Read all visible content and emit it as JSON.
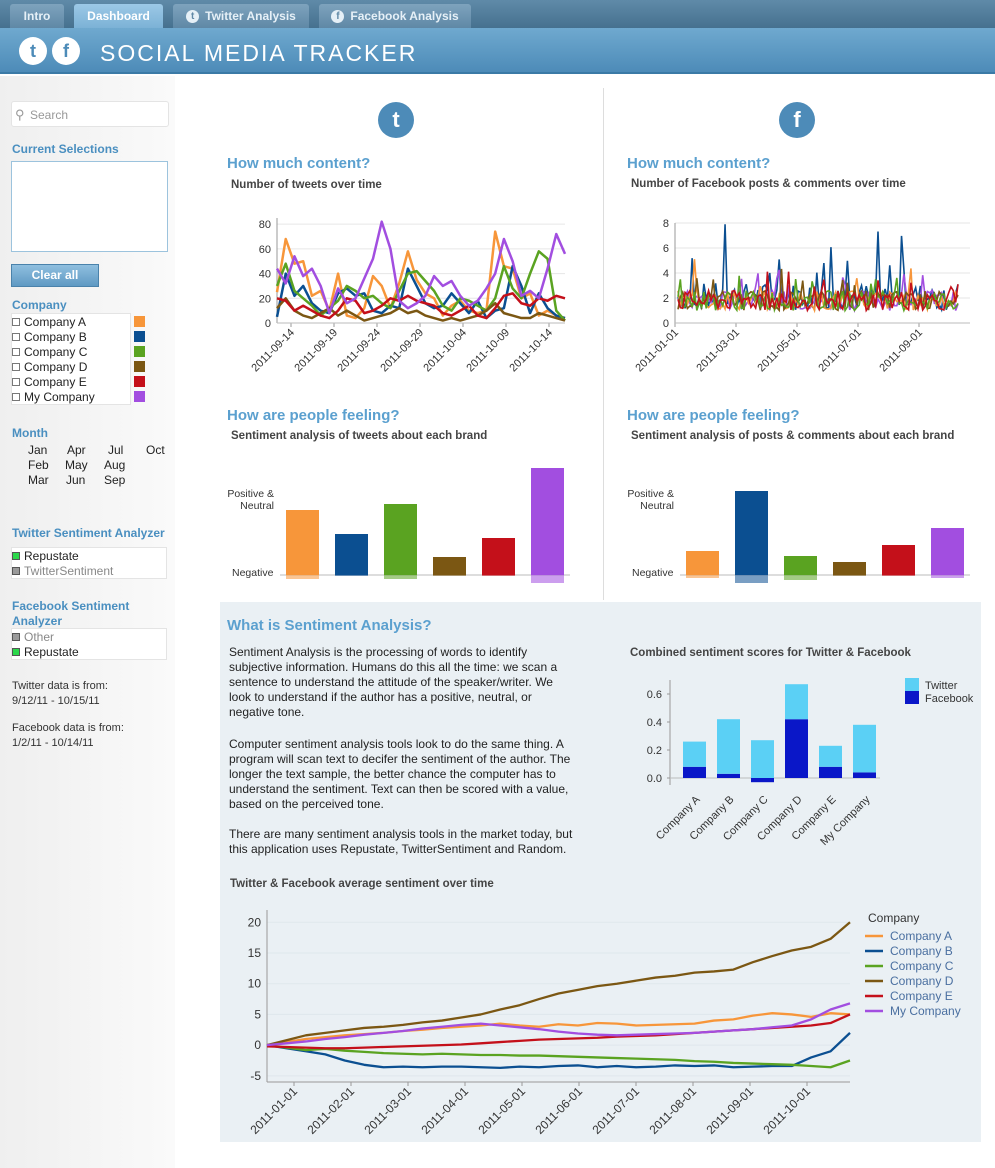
{
  "tabs": [
    {
      "label": "Intro",
      "icon": ""
    },
    {
      "label": "Dashboard",
      "icon": ""
    },
    {
      "label": "Twitter Analysis",
      "icon": "twitter-icon"
    },
    {
      "label": "Facebook Analysis",
      "icon": "facebook-icon"
    }
  ],
  "app_title": "SOCIAL MEDIA TRACKER",
  "colors": {
    "company_a": "#f7963a",
    "company_b": "#0b4f91",
    "company_c": "#5aa321",
    "company_d": "#7b5713",
    "company_e": "#c4101a",
    "my_company": "#a24ee0",
    "accent": "#5ba0cf",
    "twitter_bar": "#5bd0f5",
    "facebook_bar": "#0a17c8"
  },
  "sidebar": {
    "search_placeholder": "Search",
    "current_selections": "Current Selections",
    "clear_all": "Clear all",
    "company_head": "Company",
    "companies": [
      "Company A",
      "Company B",
      "Company C",
      "Company D",
      "Company E",
      "My Company"
    ],
    "month_head": "Month",
    "months": [
      "Jan",
      "Apr",
      "Jul",
      "Oct",
      "Feb",
      "May",
      "Aug",
      "Mar",
      "Jun",
      "Sep"
    ],
    "twitter_analyzer_head": "Twitter Sentiment Analyzer",
    "twitter_analyzers": [
      "Repustate",
      "TwitterSentiment"
    ],
    "facebook_analyzer_head": "Facebook Sentiment Analyzer",
    "facebook_analyzers": [
      "Other",
      "Repustate"
    ],
    "twitter_from_label": "Twitter data is from:",
    "twitter_from": "9/12/11 - 10/15/11",
    "facebook_from_label": "Facebook data is from:",
    "facebook_from": "1/2/11 - 10/14/11"
  },
  "twitter": {
    "content_title": "How much content?",
    "content_sub": "Number of tweets over time",
    "feel_title": "How are people feeling?",
    "feel_sub": "Sentiment analysis of tweets about each brand",
    "pos_label": "Positive &",
    "pos_label2": "Neutral",
    "neg_label": "Negative"
  },
  "facebook": {
    "content_title": "How much content?",
    "content_sub": "Number of Facebook posts & comments over time",
    "feel_title": "How are people feeling?",
    "feel_sub": "Sentiment analysis of posts & comments about each brand",
    "pos_label": "Positive &",
    "pos_label2": "Neutral",
    "neg_label": "Negative"
  },
  "what": {
    "title": "What is Sentiment Analysis?",
    "p1": [
      "Sentiment Analysis is the processing of words to identify",
      "subjective information.  Humans do this all the time: we scan a",
      "sentence to understand the attitude of the speaker/writer.  We",
      "look to understand if the author has a positive, neutral, or",
      "negative tone."
    ],
    "p2": [
      "Computer sentiment analysis tools look to do the same thing.  A",
      "program will scan text to decifer the sentiment of the author.  The",
      "longer the text sample, the better chance the computer has to",
      "understand the sentiment.  Text can then be scored with a value,",
      "based on the perceived tone."
    ],
    "p3": [
      "There are many sentiment analysis tools in the market today, but",
      "this application uses Repustate, TwitterSentiment and Random."
    ]
  },
  "chart_data": [
    {
      "id": "tweets",
      "type": "line",
      "title": "Number of tweets over time",
      "ylim": [
        0,
        85
      ],
      "yticks": [
        0,
        20,
        40,
        60,
        80
      ],
      "xticks": [
        "2011-09-14",
        "2011-09-19",
        "2011-09-24",
        "2011-09-29",
        "2011-10-04",
        "2011-10-09",
        "2011-10-14"
      ],
      "x_start": "2011-09-12",
      "x_end": "2011-10-15",
      "series": [
        {
          "name": "Company A",
          "values": [
            25,
            68,
            48,
            50,
            22,
            26,
            10,
            40,
            6,
            4,
            12,
            38,
            30,
            12,
            32,
            58,
            35,
            24,
            20,
            6,
            14,
            18,
            10,
            8,
            10,
            74,
            46,
            44,
            20,
            24,
            6,
            10,
            6,
            4
          ]
        },
        {
          "name": "Company B",
          "values": [
            5,
            40,
            22,
            30,
            16,
            10,
            8,
            24,
            28,
            22,
            24,
            10,
            8,
            14,
            12,
            44,
            30,
            16,
            12,
            14,
            24,
            16,
            8,
            18,
            4,
            10,
            12,
            46,
            30,
            8,
            24,
            12,
            6,
            4
          ]
        },
        {
          "name": "Company C",
          "values": [
            30,
            48,
            26,
            20,
            14,
            6,
            12,
            18,
            30,
            26,
            20,
            22,
            16,
            12,
            26,
            40,
            42,
            34,
            26,
            14,
            10,
            20,
            18,
            14,
            10,
            20,
            46,
            28,
            20,
            40,
            58,
            52,
            10,
            2
          ]
        },
        {
          "name": "Company D",
          "values": [
            12,
            20,
            10,
            6,
            4,
            8,
            12,
            6,
            10,
            6,
            2,
            4,
            6,
            8,
            12,
            8,
            10,
            6,
            4,
            2,
            4,
            2,
            4,
            6,
            10,
            16,
            8,
            6,
            4,
            4,
            8,
            6,
            4,
            2
          ]
        },
        {
          "name": "Company E",
          "values": [
            20,
            18,
            10,
            14,
            10,
            6,
            4,
            10,
            20,
            18,
            8,
            10,
            14,
            20,
            18,
            22,
            18,
            16,
            14,
            8,
            6,
            10,
            14,
            6,
            4,
            12,
            22,
            24,
            16,
            14,
            20,
            18,
            22,
            20
          ]
        },
        {
          "name": "My Company",
          "values": [
            44,
            32,
            54,
            38,
            44,
            30,
            8,
            28,
            16,
            20,
            36,
            52,
            82,
            60,
            18,
            12,
            16,
            22,
            38,
            30,
            34,
            22,
            14,
            18,
            28,
            40,
            68,
            50,
            22,
            26,
            20,
            44,
            72,
            56
          ]
        }
      ]
    },
    {
      "id": "fb_posts",
      "type": "line",
      "title": "Number of Facebook posts & comments over time",
      "ylim": [
        0,
        8
      ],
      "yticks": [
        0,
        2,
        4,
        6,
        8
      ],
      "xticks": [
        "2011-01-01",
        "2011-03-01",
        "2011-05-01",
        "2011-07-01",
        "2011-09-01"
      ],
      "x_start": "2011-01-02",
      "x_end": "2011-10-14"
    },
    {
      "id": "tw_sent",
      "type": "bar",
      "categories": [
        "Company A",
        "Company B",
        "Company C",
        "Company D",
        "Company E",
        "My Company"
      ],
      "positive": [
        65,
        41,
        71,
        18,
        37,
        107
      ],
      "negative": [
        4,
        1,
        4,
        1,
        1,
        8
      ]
    },
    {
      "id": "fb_sent",
      "type": "bar",
      "categories": [
        "Company A",
        "Company B",
        "Company C",
        "Company D",
        "Company E",
        "My Company"
      ],
      "positive": [
        24,
        84,
        19,
        13,
        30,
        47
      ],
      "negative": [
        3,
        8,
        5,
        1,
        1,
        3
      ]
    },
    {
      "id": "combined",
      "type": "bar",
      "title": "Combined sentiment scores for Twitter & Facebook",
      "ylim": [
        -0.05,
        0.7
      ],
      "yticks": [
        0.0,
        0.2,
        0.4,
        0.6
      ],
      "categories": [
        "Company A",
        "Company B",
        "Company C",
        "Company D",
        "Company E",
        "My Company"
      ],
      "series": [
        {
          "name": "Twitter",
          "values": [
            0.18,
            0.39,
            0.27,
            0.25,
            0.15,
            0.34
          ]
        },
        {
          "name": "Facebook",
          "values": [
            0.08,
            0.03,
            -0.03,
            0.42,
            0.08,
            0.04
          ]
        }
      ]
    },
    {
      "id": "avg_sent",
      "type": "line",
      "title": "Twitter & Facebook average sentiment over time",
      "legend_title": "Company",
      "ylim": [
        -6,
        22
      ],
      "yticks": [
        -5,
        0,
        5,
        10,
        15,
        20
      ],
      "xticks": [
        "2011-01-01",
        "2011-02-01",
        "2011-03-01",
        "2011-04-01",
        "2011-05-01",
        "2011-06-01",
        "2011-07-01",
        "2011-08-01",
        "2011-09-01",
        "2011-10-01"
      ],
      "series": [
        {
          "name": "Company A",
          "values": [
            0,
            0.5,
            1,
            1.3,
            1.6,
            1.8,
            2,
            2.3,
            2.5,
            2.8,
            3,
            3.2,
            3.5,
            3.2,
            3,
            3.4,
            3.2,
            3.6,
            3.5,
            3.2,
            3.3,
            3.4,
            3.5,
            4,
            4.2,
            4.8,
            5.2,
            5,
            4.6,
            5.2,
            5
          ]
        },
        {
          "name": "Company B",
          "values": [
            0,
            -0.5,
            -1,
            -1.5,
            -2.5,
            -3.2,
            -3.6,
            -3.5,
            -3.6,
            -3.5,
            -3.5,
            -3.6,
            -3.7,
            -3.5,
            -3.6,
            -3.4,
            -3.3,
            -3.6,
            -3.4,
            -3.6,
            -3.5,
            -3.3,
            -3.4,
            -3.3,
            -3.6,
            -3.5,
            -3.4,
            -3.4,
            -2,
            -1,
            2
          ]
        },
        {
          "name": "Company C",
          "values": [
            0,
            -0.4,
            -0.8,
            -0.6,
            -0.9,
            -1.1,
            -1.3,
            -1.4,
            -1.5,
            -1.4,
            -1.5,
            -1.6,
            -1.6,
            -1.7,
            -1.7,
            -1.8,
            -1.9,
            -2,
            -2.1,
            -2.2,
            -2.3,
            -2.4,
            -2.6,
            -2.7,
            -2.9,
            -3,
            -3.1,
            -3.2,
            -3.4,
            -3.6,
            -2.5
          ]
        },
        {
          "name": "Company D",
          "values": [
            0,
            0.8,
            1.6,
            2,
            2.4,
            2.8,
            3,
            3.3,
            3.7,
            4,
            4.5,
            5,
            5.8,
            6.5,
            7.5,
            8.4,
            9,
            9.6,
            10,
            10.5,
            11,
            11.3,
            11.8,
            12,
            12.3,
            13.5,
            14.5,
            15.4,
            16,
            17.3,
            20
          ]
        },
        {
          "name": "Company E",
          "values": [
            -0.2,
            -0.3,
            -0.4,
            -0.5,
            -0.5,
            -0.4,
            -0.3,
            -0.2,
            -0.1,
            0,
            0.1,
            0.3,
            0.5,
            0.7,
            0.9,
            1,
            1.1,
            1.2,
            1.4,
            1.5,
            1.6,
            1.8,
            2,
            2.2,
            2.4,
            2.6,
            2.8,
            3,
            3.2,
            3.6,
            5
          ]
        },
        {
          "name": "My Company",
          "values": [
            0,
            0.3,
            0.6,
            1,
            1.3,
            1.7,
            2,
            2.3,
            2.7,
            3,
            3.3,
            3.5,
            3.2,
            2.9,
            2.6,
            2.2,
            1.9,
            1.7,
            1.6,
            1.7,
            1.8,
            1.9,
            2,
            2.2,
            2.4,
            2.6,
            2.9,
            3.2,
            4.2,
            5.8,
            6.8
          ]
        }
      ]
    }
  ]
}
